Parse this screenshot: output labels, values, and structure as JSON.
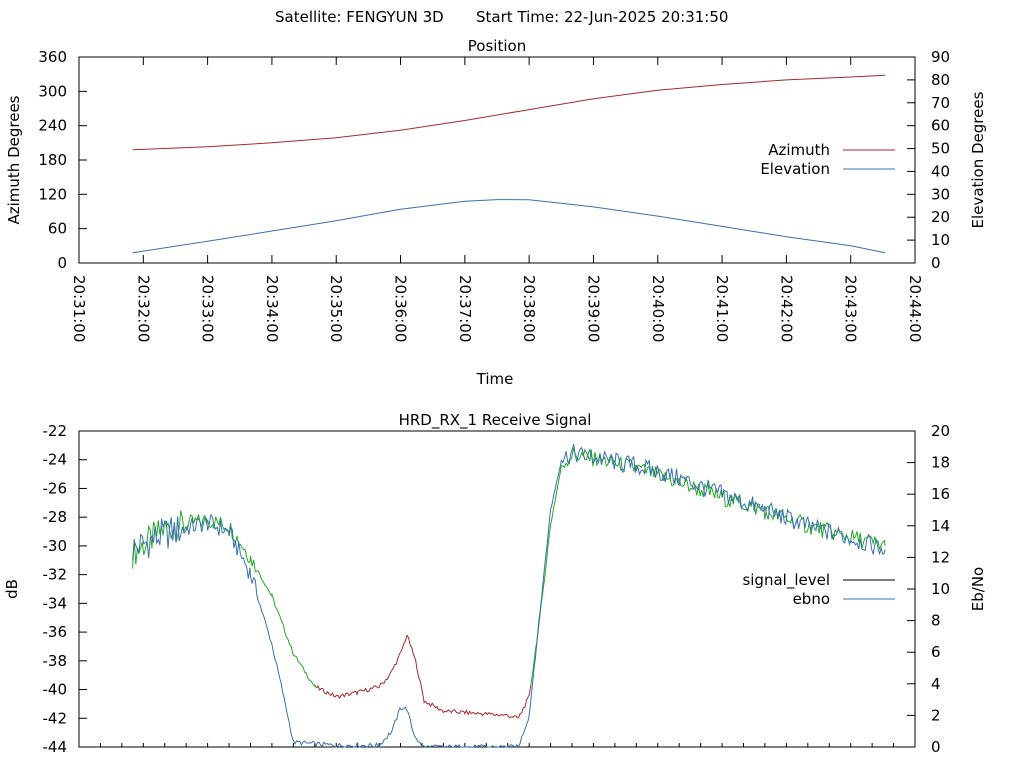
{
  "header": {
    "satellite": "Satellite: FENGYUN 3D",
    "start_time": "Start Time: 22-Jun-2025 20:31:50"
  },
  "chart_data": [
    {
      "type": "line",
      "title": "Position",
      "xlabel": "Time",
      "ylabel": "Azimuth Degrees",
      "y2label": "Elevation Degrees",
      "xlim": [
        "20:31:00",
        "20:44:00"
      ],
      "ylim": [
        0,
        360
      ],
      "y2lim": [
        0,
        90
      ],
      "xticks": [
        "20:31:00",
        "20:32:00",
        "20:33:00",
        "20:34:00",
        "20:35:00",
        "20:36:00",
        "20:37:00",
        "20:38:00",
        "20:39:00",
        "20:40:00",
        "20:41:00",
        "20:42:00",
        "20:43:00",
        "20:44:00"
      ],
      "yticks": [
        "0",
        "60",
        "120",
        "180",
        "240",
        "300",
        "360"
      ],
      "y2ticks": [
        "0",
        "10",
        "20",
        "30",
        "40",
        "50",
        "60",
        "70",
        "80",
        "90"
      ],
      "grid": false,
      "legend": "right",
      "series": [
        {
          "name": "Azimuth",
          "axis": "y",
          "color": "#a52a2a",
          "points": [
            [
              "20:31:50",
              198
            ],
            [
              "20:33:00",
              203
            ],
            [
              "20:34:00",
              210
            ],
            [
              "20:35:00",
              219
            ],
            [
              "20:36:00",
              232
            ],
            [
              "20:37:00",
              249
            ],
            [
              "20:38:00",
              268
            ],
            [
              "20:39:00",
              287
            ],
            [
              "20:40:00",
              302
            ],
            [
              "20:41:00",
              312
            ],
            [
              "20:42:00",
              320
            ],
            [
              "20:43:00",
              325
            ],
            [
              "20:43:32",
              328
            ]
          ]
        },
        {
          "name": "Elevation",
          "axis": "y2",
          "color": "#3a6fb0",
          "points": [
            [
              "20:31:50",
              4.5
            ],
            [
              "20:33:00",
              9.5
            ],
            [
              "20:34:00",
              14
            ],
            [
              "20:35:00",
              18.5
            ],
            [
              "20:36:00",
              23.5
            ],
            [
              "20:37:00",
              27
            ],
            [
              "20:37:30",
              27.7
            ],
            [
              "20:38:00",
              27.6
            ],
            [
              "20:39:00",
              24.5
            ],
            [
              "20:40:00",
              20.5
            ],
            [
              "20:41:00",
              16
            ],
            [
              "20:42:00",
              11.5
            ],
            [
              "20:43:00",
              7.5
            ],
            [
              "20:43:32",
              4.5
            ]
          ]
        }
      ]
    },
    {
      "type": "line",
      "title": "HRD_RX_1 Receive Signal",
      "ylabel": "dB",
      "y2label": "Eb/No",
      "xlim": [
        "20:31:00",
        "20:44:00"
      ],
      "ylim": [
        -44,
        -22
      ],
      "y2lim": [
        0,
        20
      ],
      "yticks": [
        "-22",
        "-24",
        "-26",
        "-28",
        "-30",
        "-32",
        "-34",
        "-36",
        "-38",
        "-40",
        "-42",
        "-44"
      ],
      "y2ticks": [
        "0",
        "2",
        "4",
        "6",
        "8",
        "10",
        "12",
        "14",
        "16",
        "18",
        "20"
      ],
      "grid": false,
      "legend": "right",
      "series": [
        {
          "name": "signal_level",
          "axis": "y",
          "color": "#000000",
          "trace_colors": [
            "#22aa22",
            "#a52a2a"
          ],
          "points": [
            [
              "20:31:50",
              -30.5
            ],
            [
              "20:32:20",
              -28.8
            ],
            [
              "20:33:00",
              -28.2
            ],
            [
              "20:33:20",
              -28.6
            ],
            [
              "20:33:40",
              -30.8
            ],
            [
              "20:34:00",
              -33.5
            ],
            [
              "20:34:20",
              -37.5
            ],
            [
              "20:34:40",
              -39.8
            ],
            [
              "20:35:00",
              -40.5
            ],
            [
              "20:35:20",
              -40.2
            ],
            [
              "20:35:40",
              -39.8
            ],
            [
              "20:35:50",
              -39.0
            ],
            [
              "20:36:00",
              -37.5
            ],
            [
              "20:36:06",
              -36.2
            ],
            [
              "20:36:14",
              -38.0
            ],
            [
              "20:36:22",
              -40.8
            ],
            [
              "20:36:40",
              -41.5
            ],
            [
              "20:37:00",
              -41.6
            ],
            [
              "20:37:40",
              -41.8
            ],
            [
              "20:37:50",
              -42.0
            ],
            [
              "20:38:00",
              -40.5
            ],
            [
              "20:38:10",
              -35.0
            ],
            [
              "20:38:20",
              -28.5
            ],
            [
              "20:38:30",
              -24.5
            ],
            [
              "20:38:40",
              -23.6
            ],
            [
              "20:39:00",
              -23.9
            ],
            [
              "20:39:40",
              -24.6
            ],
            [
              "20:40:20",
              -25.6
            ],
            [
              "20:41:00",
              -26.6
            ],
            [
              "20:41:40",
              -27.6
            ],
            [
              "20:42:20",
              -28.6
            ],
            [
              "20:43:00",
              -29.4
            ],
            [
              "20:43:32",
              -30.0
            ]
          ]
        },
        {
          "name": "ebno",
          "axis": "y2",
          "color": "#3a6fb0",
          "points": [
            [
              "20:31:50",
              12.5
            ],
            [
              "20:32:20",
              13.5
            ],
            [
              "20:33:00",
              14.2
            ],
            [
              "20:33:20",
              13.6
            ],
            [
              "20:33:40",
              11.0
            ],
            [
              "20:34:00",
              6.5
            ],
            [
              "20:34:10",
              3.5
            ],
            [
              "20:34:20",
              0.3
            ],
            [
              "20:35:00",
              0.1
            ],
            [
              "20:35:40",
              0.1
            ],
            [
              "20:35:52",
              1.0
            ],
            [
              "20:36:00",
              2.5
            ],
            [
              "20:36:06",
              2.4
            ],
            [
              "20:36:12",
              0.9
            ],
            [
              "20:36:20",
              0
            ],
            [
              "20:37:50",
              0
            ],
            [
              "20:38:00",
              2.0
            ],
            [
              "20:38:10",
              8.5
            ],
            [
              "20:38:20",
              15.0
            ],
            [
              "20:38:30",
              18.2
            ],
            [
              "20:38:40",
              18.6
            ],
            [
              "20:39:00",
              18.3
            ],
            [
              "20:39:40",
              17.8
            ],
            [
              "20:40:20",
              17.0
            ],
            [
              "20:41:00",
              16.0
            ],
            [
              "20:41:40",
              15.0
            ],
            [
              "20:42:20",
              14.0
            ],
            [
              "20:43:00",
              13.2
            ],
            [
              "20:43:32",
              12.5
            ]
          ]
        }
      ]
    }
  ]
}
